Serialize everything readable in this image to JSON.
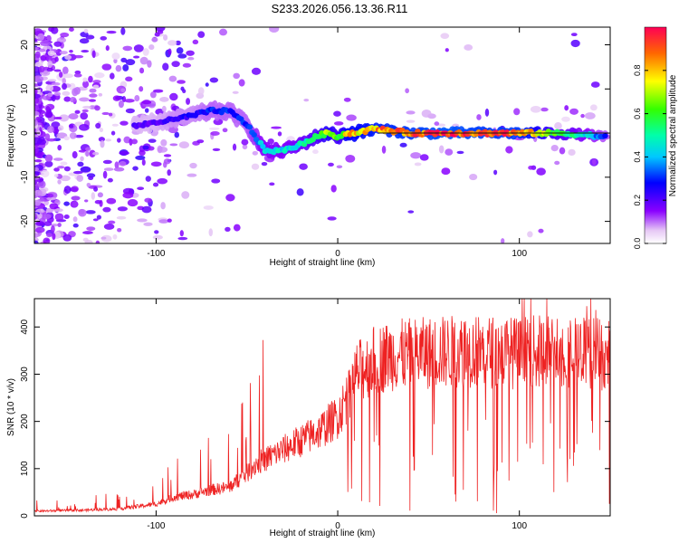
{
  "title": "S233.2026.056.13.36.R11",
  "colorbar": {
    "label": "Normalized spectral amplitude",
    "ticks": [
      0.0,
      0.2,
      0.4,
      0.6,
      0.8
    ],
    "tick_labels": [
      "0.0",
      "0.2",
      "0.4",
      "0.6",
      "0.8"
    ],
    "range": [
      0,
      1
    ]
  },
  "chart_data": [
    {
      "type": "heatmap",
      "xlabel": "Height of straight line (km)",
      "ylabel": "Frequency (Hz)",
      "xlim": [
        -167,
        150
      ],
      "ylim": [
        -25,
        24
      ],
      "xticks": [
        -100,
        0,
        100
      ],
      "xtick_labels": [
        "-100",
        "0",
        "100"
      ],
      "yticks": [
        -20,
        -10,
        0,
        10,
        20
      ],
      "ytick_labels": [
        "-20",
        "-10",
        "0",
        "10",
        "20"
      ],
      "ridge": {
        "x": [
          -112,
          -100,
          -90,
          -80,
          -70,
          -60,
          -50,
          -40,
          -30,
          -20,
          -10,
          -5,
          0,
          5,
          10,
          20,
          40,
          60,
          80,
          100,
          120,
          140,
          148
        ],
        "y": [
          1.5,
          2.5,
          3,
          4,
          5,
          5,
          2,
          -4,
          -4,
          -2.5,
          -0.5,
          0,
          -0.8,
          0,
          0,
          1,
          0,
          0,
          0,
          0,
          0,
          -0.5,
          -1
        ],
        "amplitude": [
          0.2,
          0.2,
          0.25,
          0.25,
          0.3,
          0.3,
          0.3,
          0.45,
          0.45,
          0.5,
          0.6,
          0.75,
          0.6,
          0.8,
          0.8,
          0.85,
          0.9,
          0.95,
          0.9,
          0.9,
          0.6,
          0.4,
          0.3
        ]
      }
    },
    {
      "type": "line",
      "xlabel": "Height of straight line (km)",
      "ylabel": "SNR (10 * v/v)",
      "xlim": [
        -167,
        150
      ],
      "ylim": [
        0,
        460
      ],
      "xticks": [
        -100,
        0,
        100
      ],
      "xtick_labels": [
        "-100",
        "0",
        "100"
      ],
      "yticks": [
        0,
        100,
        200,
        300,
        400
      ],
      "ytick_labels": [
        "0",
        "100",
        "200",
        "300",
        "400"
      ],
      "color": "#ee2222",
      "trend": {
        "x": [
          -167,
          -140,
          -120,
          -100,
          -90,
          -80,
          -70,
          -60,
          -50,
          -45,
          -40,
          -35,
          -30,
          -20,
          -10,
          0,
          5,
          10,
          20,
          30,
          50,
          70,
          100,
          120,
          140,
          150
        ],
        "y": [
          10,
          12,
          15,
          25,
          40,
          45,
          55,
          60,
          90,
          110,
          120,
          130,
          140,
          160,
          180,
          210,
          250,
          300,
          330,
          340,
          345,
          350,
          345,
          350,
          345,
          340
        ]
      }
    }
  ]
}
